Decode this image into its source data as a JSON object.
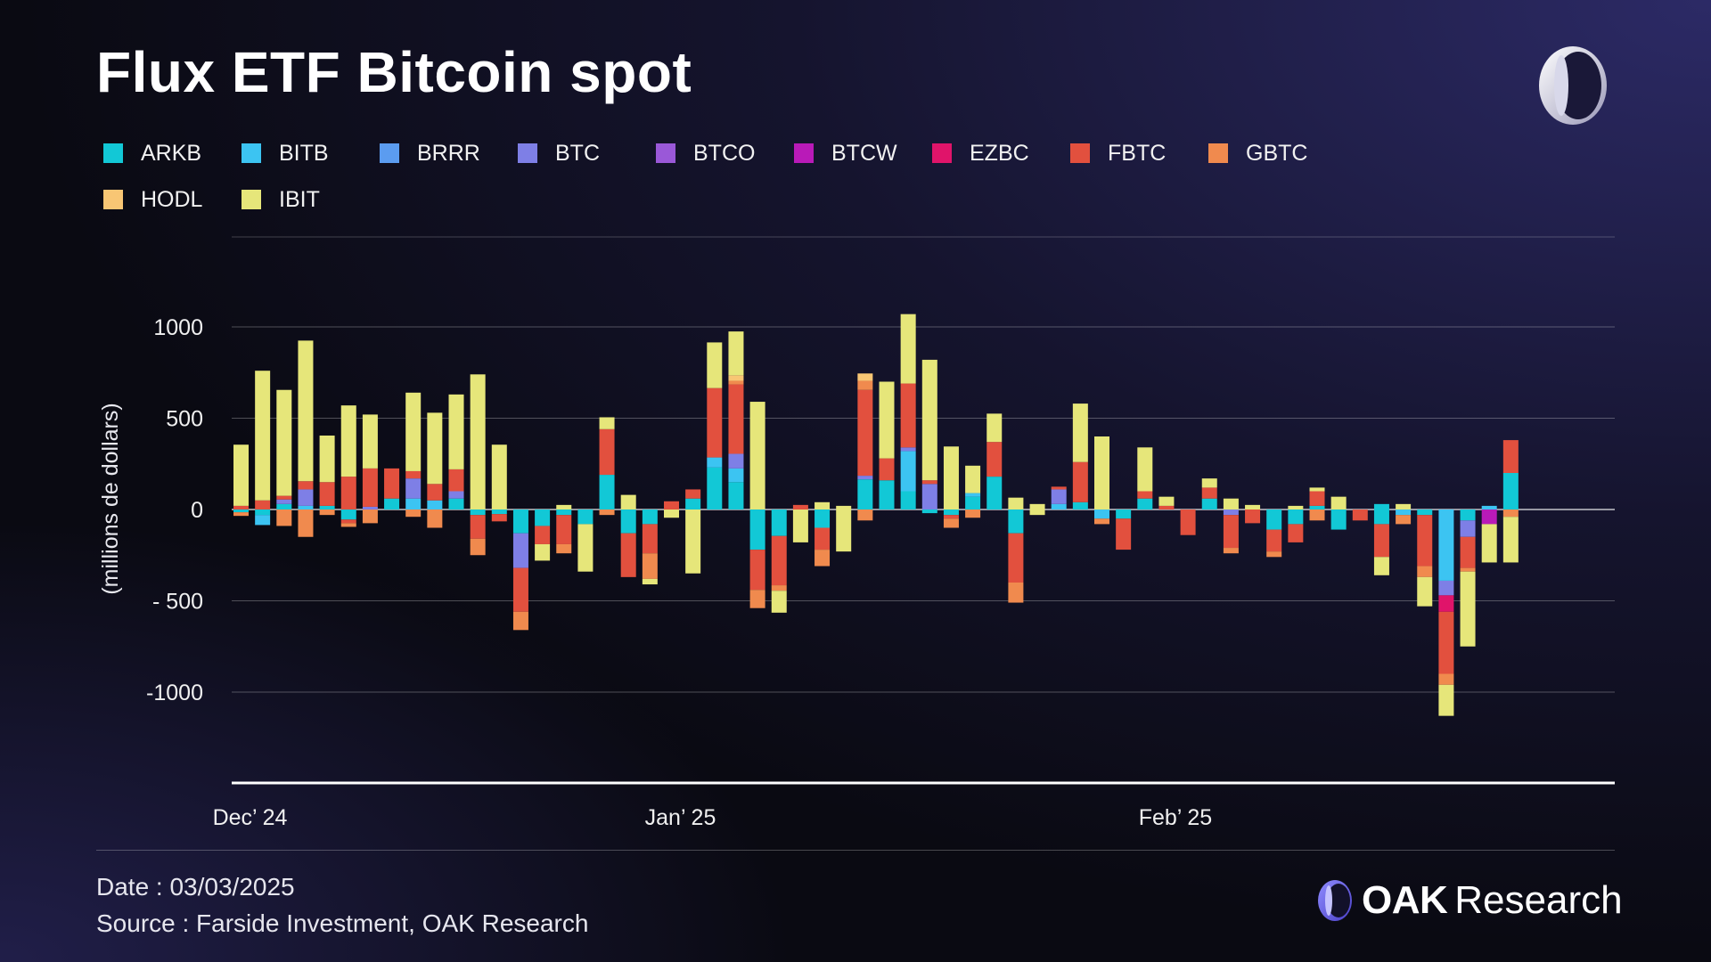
{
  "title": "Flux ETF Bitcoin spot",
  "footer": {
    "date": "Date : 03/03/2025",
    "source": "Source : Farside Investment, OAK Research"
  },
  "brand": {
    "name_bold": "OAK",
    "name_regular": "Research"
  },
  "legend": [
    {
      "name": "ARKB",
      "color": "#12c8d6"
    },
    {
      "name": "BITB",
      "color": "#3cc4f2"
    },
    {
      "name": "BRRR",
      "color": "#5b9cf0"
    },
    {
      "name": "BTC",
      "color": "#7e7fe6"
    },
    {
      "name": "BTCO",
      "color": "#9a58d8"
    },
    {
      "name": "BTCW",
      "color": "#b91ab8"
    },
    {
      "name": "EZBC",
      "color": "#e0146a"
    },
    {
      "name": "FBTC",
      "color": "#e2503e"
    },
    {
      "name": "GBTC",
      "color": "#f08a4e"
    },
    {
      "name": "HODL",
      "color": "#f8c674"
    },
    {
      "name": "IBIT",
      "color": "#e6e67a"
    }
  ],
  "chart_data": {
    "type": "bar",
    "stacked": true,
    "title": "Flux ETF Bitcoin spot",
    "xlabel": "",
    "ylabel": "(millions de dollars)",
    "ylim": [
      -1500,
      1500
    ],
    "yticks": [
      1000,
      500,
      0,
      -500,
      -1000
    ],
    "ytick_labels": [
      "1000",
      "500",
      "0",
      "- 500",
      "-1000"
    ],
    "xticks": [
      {
        "index": 0,
        "label": "Dec’ 24"
      },
      {
        "index": 20,
        "label": "Jan’ 25"
      },
      {
        "index": 43,
        "label": "Feb’ 25"
      }
    ],
    "series_names": [
      "ARKB",
      "BITB",
      "BRRR",
      "BTC",
      "BTCO",
      "BTCW",
      "EZBC",
      "FBTC",
      "GBTC",
      "HODL",
      "IBIT"
    ],
    "days": [
      {
        "pos": {
          "FBTC": 20,
          "IBIT": 335
        },
        "neg": {
          "ARKB": -15,
          "GBTC": -20
        }
      },
      {
        "pos": {
          "FBTC": 50,
          "IBIT": 710
        },
        "neg": {
          "ARKB": -30,
          "BITB": -55
        }
      },
      {
        "pos": {
          "ARKB": 30,
          "BTC": 25,
          "FBTC": 20,
          "IBIT": 580
        },
        "neg": {
          "GBTC": -90
        }
      },
      {
        "pos": {
          "BITB": 20,
          "BTC": 90,
          "FBTC": 45,
          "IBIT": 770
        },
        "neg": {
          "GBTC": -150
        }
      },
      {
        "pos": {
          "ARKB": 20,
          "FBTC": 130,
          "IBIT": 255
        },
        "neg": {
          "GBTC": -30
        }
      },
      {
        "pos": {
          "FBTC": 180,
          "IBIT": 390
        },
        "neg": {
          "ARKB": -55,
          "FBTC": -20,
          "GBTC": -20
        }
      },
      {
        "pos": {
          "BTC": 15,
          "FBTC": 210,
          "IBIT": 295
        },
        "neg": {
          "GBTC": -75
        }
      },
      {
        "pos": {
          "ARKB": 60,
          "FBTC": 165
        },
        "neg": {}
      },
      {
        "pos": {
          "BITB": 60,
          "BTC": 110,
          "FBTC": 40,
          "IBIT": 430
        },
        "neg": {
          "GBTC": -40
        }
      },
      {
        "pos": {
          "BITB": 50,
          "FBTC": 90,
          "IBIT": 390
        },
        "neg": {
          "GBTC": -100
        }
      },
      {
        "pos": {
          "ARKB": 60,
          "BTC": 40,
          "FBTC": 120,
          "IBIT": 410
        },
        "neg": {}
      },
      {
        "pos": {
          "IBIT": 740
        },
        "neg": {
          "ARKB": -30,
          "FBTC": -130,
          "GBTC": -90
        }
      },
      {
        "pos": {
          "IBIT": 355
        },
        "neg": {
          "ARKB": -25,
          "FBTC": -40
        }
      },
      {
        "pos": {},
        "neg": {
          "ARKB": -130,
          "BTC": -190,
          "FBTC": -240,
          "GBTC": -100
        }
      },
      {
        "pos": {},
        "neg": {
          "ARKB": -90,
          "FBTC": -100,
          "IBIT": -90
        }
      },
      {
        "pos": {
          "IBIT": 25
        },
        "neg": {
          "ARKB": -30,
          "FBTC": -160,
          "GBTC": -50
        }
      },
      {
        "pos": {},
        "neg": {
          "ARKB": -80,
          "IBIT": -260
        }
      },
      {
        "pos": {
          "ARKB": 190,
          "FBTC": 250,
          "IBIT": 65
        },
        "neg": {
          "GBTC": -30
        }
      },
      {
        "pos": {
          "IBIT": 80
        },
        "neg": {
          "ARKB": -130,
          "FBTC": -240
        }
      },
      {
        "pos": {},
        "neg": {
          "ARKB": -80,
          "FBTC": -160,
          "GBTC": -140,
          "IBIT": -30
        }
      },
      {
        "pos": {
          "FBTC": 45
        },
        "neg": {
          "IBIT": -45
        }
      },
      {
        "pos": {
          "ARKB": 60,
          "FBTC": 50
        },
        "neg": {
          "IBIT": -350
        }
      },
      {
        "pos": {
          "ARKB": 230,
          "BITB": 55,
          "FBTC": 380,
          "IBIT": 250
        },
        "neg": {}
      },
      {
        "pos": {
          "ARKB": 150,
          "BITB": 75,
          "BTC": 80,
          "FBTC": 380,
          "GBTC": 20,
          "HODL": 30,
          "IBIT": 240
        },
        "neg": {}
      },
      {
        "pos": {
          "IBIT": 590
        },
        "neg": {
          "ARKB": -220,
          "FBTC": -220,
          "GBTC": -100
        }
      },
      {
        "pos": {},
        "neg": {
          "ARKB": -145,
          "FBTC": -270,
          "GBTC": -30,
          "IBIT": -120
        }
      },
      {
        "pos": {
          "FBTC": 25
        },
        "neg": {
          "IBIT": -180
        }
      },
      {
        "pos": {
          "IBIT": 40
        },
        "neg": {
          "ARKB": -100,
          "FBTC": -120,
          "GBTC": -90
        }
      },
      {
        "pos": {
          "IBIT": 20
        },
        "neg": {
          "IBIT": -230
        }
      },
      {
        "pos": {
          "ARKB": 165,
          "BTC": 20,
          "FBTC": 470,
          "GBTC": 50,
          "HODL": 40
        },
        "neg": {
          "GBTC": -60
        }
      },
      {
        "pos": {
          "ARKB": 160,
          "FBTC": 120,
          "IBIT": 420
        },
        "neg": {}
      },
      {
        "pos": {
          "ARKB": 100,
          "BITB": 220,
          "BTC": 20,
          "FBTC": 350,
          "IBIT": 380
        },
        "neg": {}
      },
      {
        "pos": {
          "BTC": 140,
          "FBTC": 20,
          "IBIT": 660
        },
        "neg": {
          "ARKB": -20
        }
      },
      {
        "pos": {
          "IBIT": 345
        },
        "neg": {
          "ARKB": -30,
          "FBTC": -20,
          "GBTC": -50
        }
      },
      {
        "pos": {
          "ARKB": 70,
          "BITB": 20,
          "IBIT": 150
        },
        "neg": {
          "GBTC": -45
        }
      },
      {
        "pos": {
          "ARKB": 180,
          "FBTC": 190,
          "IBIT": 155
        },
        "neg": {}
      },
      {
        "pos": {
          "IBIT": 65
        },
        "neg": {
          "ARKB": -130,
          "FBTC": -270,
          "GBTC": -110
        }
      },
      {
        "pos": {
          "IBIT": 30
        },
        "neg": {
          "IBIT": -30
        }
      },
      {
        "pos": {
          "BITB": 30,
          "BTC": 80,
          "FBTC": 15
        },
        "neg": {}
      },
      {
        "pos": {
          "ARKB": 40,
          "FBTC": 220,
          "IBIT": 320
        },
        "neg": {}
      },
      {
        "pos": {
          "IBIT": 400
        },
        "neg": {
          "BITB": -50,
          "GBTC": -30
        }
      },
      {
        "pos": {},
        "neg": {
          "ARKB": -50,
          "FBTC": -170
        }
      },
      {
        "pos": {
          "ARKB": 60,
          "FBTC": 40,
          "IBIT": 240
        },
        "neg": {}
      },
      {
        "pos": {
          "FBTC": 20,
          "IBIT": 50
        },
        "neg": {}
      },
      {
        "pos": {},
        "neg": {
          "FBTC": -140
        }
      },
      {
        "pos": {
          "ARKB": 60,
          "FBTC": 60,
          "IBIT": 50
        },
        "neg": {}
      },
      {
        "pos": {
          "IBIT": 60
        },
        "neg": {
          "BTC": -30,
          "FBTC": -180,
          "GBTC": -30
        }
      },
      {
        "pos": {
          "IBIT": 25
        },
        "neg": {
          "FBTC": -75
        }
      },
      {
        "pos": {},
        "neg": {
          "ARKB": -110,
          "FBTC": -120,
          "GBTC": -30
        }
      },
      {
        "pos": {
          "IBIT": 20
        },
        "neg": {
          "ARKB": -80,
          "FBTC": -100
        }
      },
      {
        "pos": {
          "ARKB": 20,
          "FBTC": 80,
          "IBIT": 20
        },
        "neg": {
          "GBTC": -60
        }
      },
      {
        "pos": {
          "IBIT": 70
        },
        "neg": {
          "ARKB": -110
        }
      },
      {
        "pos": {},
        "neg": {
          "FBTC": -60
        }
      },
      {
        "pos": {
          "ARKB": 30
        },
        "neg": {
          "ARKB": -80,
          "FBTC": -180,
          "IBIT": -100
        }
      },
      {
        "pos": {
          "IBIT": 30
        },
        "neg": {
          "BITB": -30,
          "GBTC": -50
        }
      },
      {
        "pos": {},
        "neg": {
          "ARKB": -30,
          "FBTC": -280,
          "GBTC": -60,
          "IBIT": -160
        }
      },
      {
        "pos": {},
        "neg": {
          "BITB": -390,
          "BTC": -80,
          "EZBC": -90,
          "FBTC": -340,
          "GBTC": -60,
          "IBIT": -170
        }
      },
      {
        "pos": {},
        "neg": {
          "ARKB": -60,
          "BTC": -90,
          "FBTC": -170,
          "GBTC": -20,
          "IBIT": -410
        }
      },
      {
        "pos": {
          "BITB": 20
        },
        "neg": {
          "BTCW": -80,
          "IBIT": -210
        }
      },
      {
        "pos": {
          "ARKB": 200,
          "FBTC": 180
        },
        "neg": {
          "GBTC": -40,
          "IBIT": -250
        }
      }
    ]
  }
}
